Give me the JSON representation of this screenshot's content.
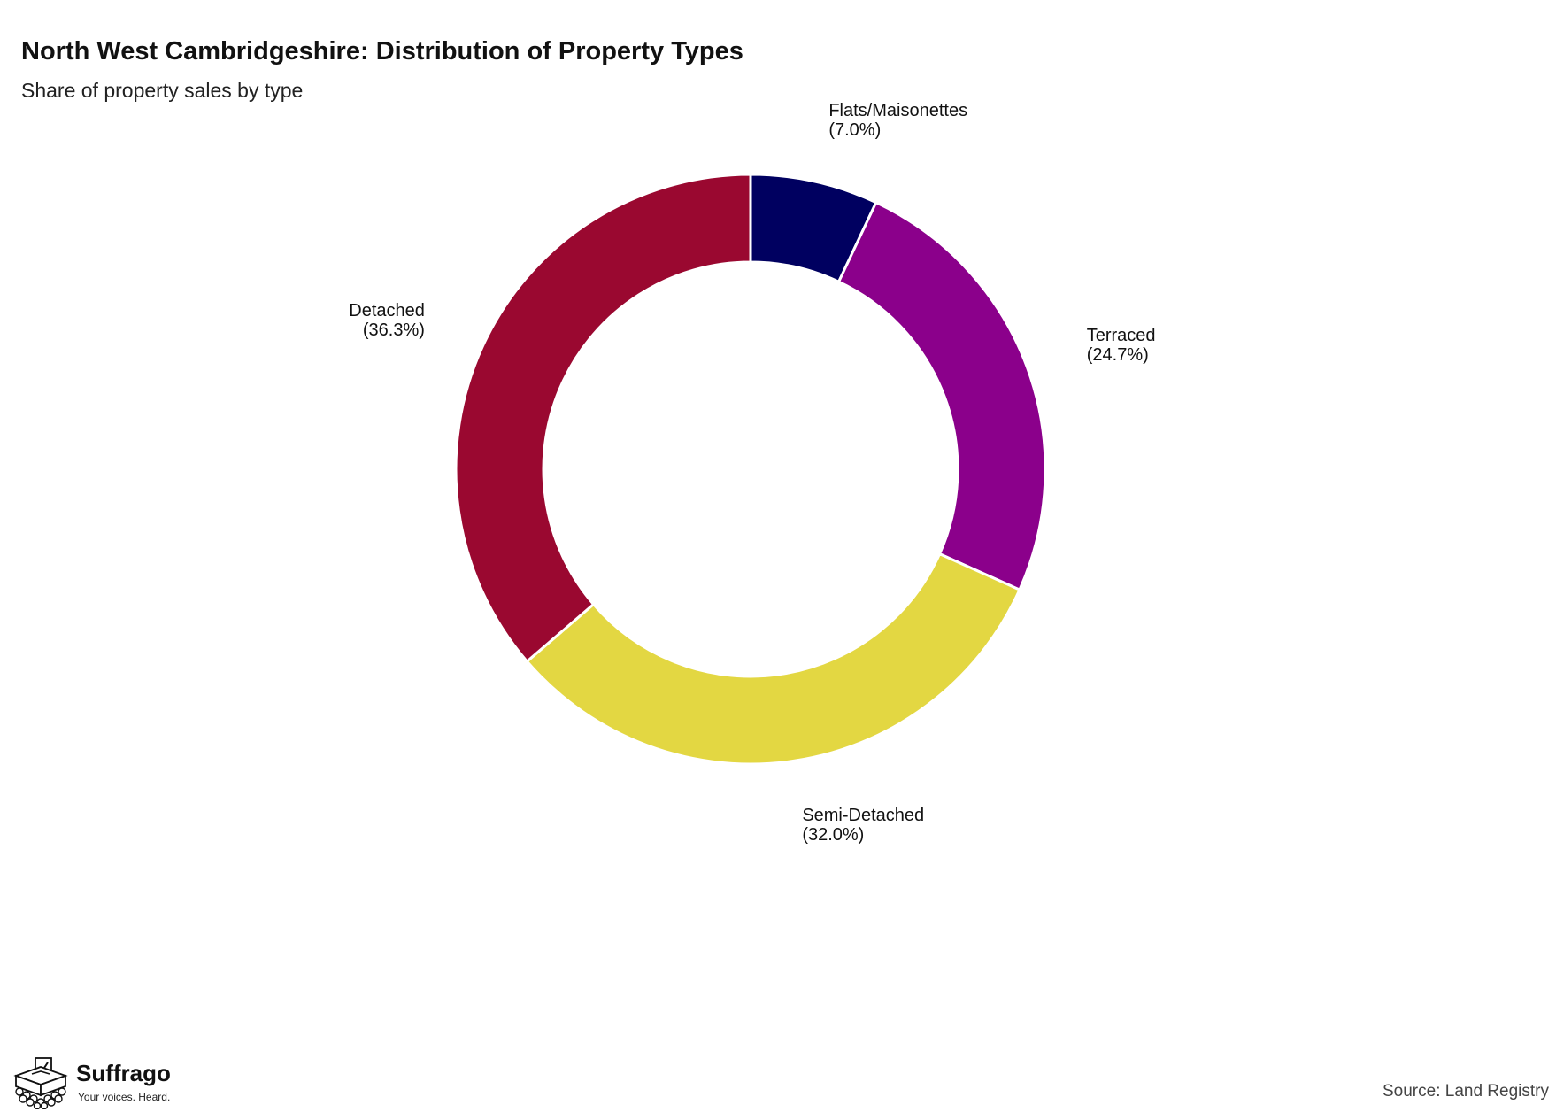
{
  "header": {
    "title": "North West Cambridgeshire: Distribution of Property Types",
    "subtitle": "Share of property sales by type"
  },
  "chart_data": {
    "type": "pie",
    "variant": "donut",
    "title": "North West Cambridgeshire: Distribution of Property Types",
    "subtitle": "Share of property sales by type",
    "start_angle_deg": 0,
    "direction": "clockwise",
    "slices": [
      {
        "label": "Flats/Maisonettes",
        "value": 7.0,
        "display": "(7.0%)",
        "color": "#000060"
      },
      {
        "label": "Terraced",
        "value": 24.7,
        "display": "(24.7%)",
        "color": "#8b008b"
      },
      {
        "label": "Semi-Detached",
        "value": 32.0,
        "display": "(32.0%)",
        "color": "#e3d742"
      },
      {
        "label": "Detached",
        "value": 36.3,
        "display": "(36.3%)",
        "color": "#9a0830"
      }
    ]
  },
  "footer": {
    "brand_name": "Suffrago",
    "brand_tagline": "Your voices. Heard.",
    "logo_icon": "ballot-box-icon",
    "source": "Source: Land Registry"
  }
}
